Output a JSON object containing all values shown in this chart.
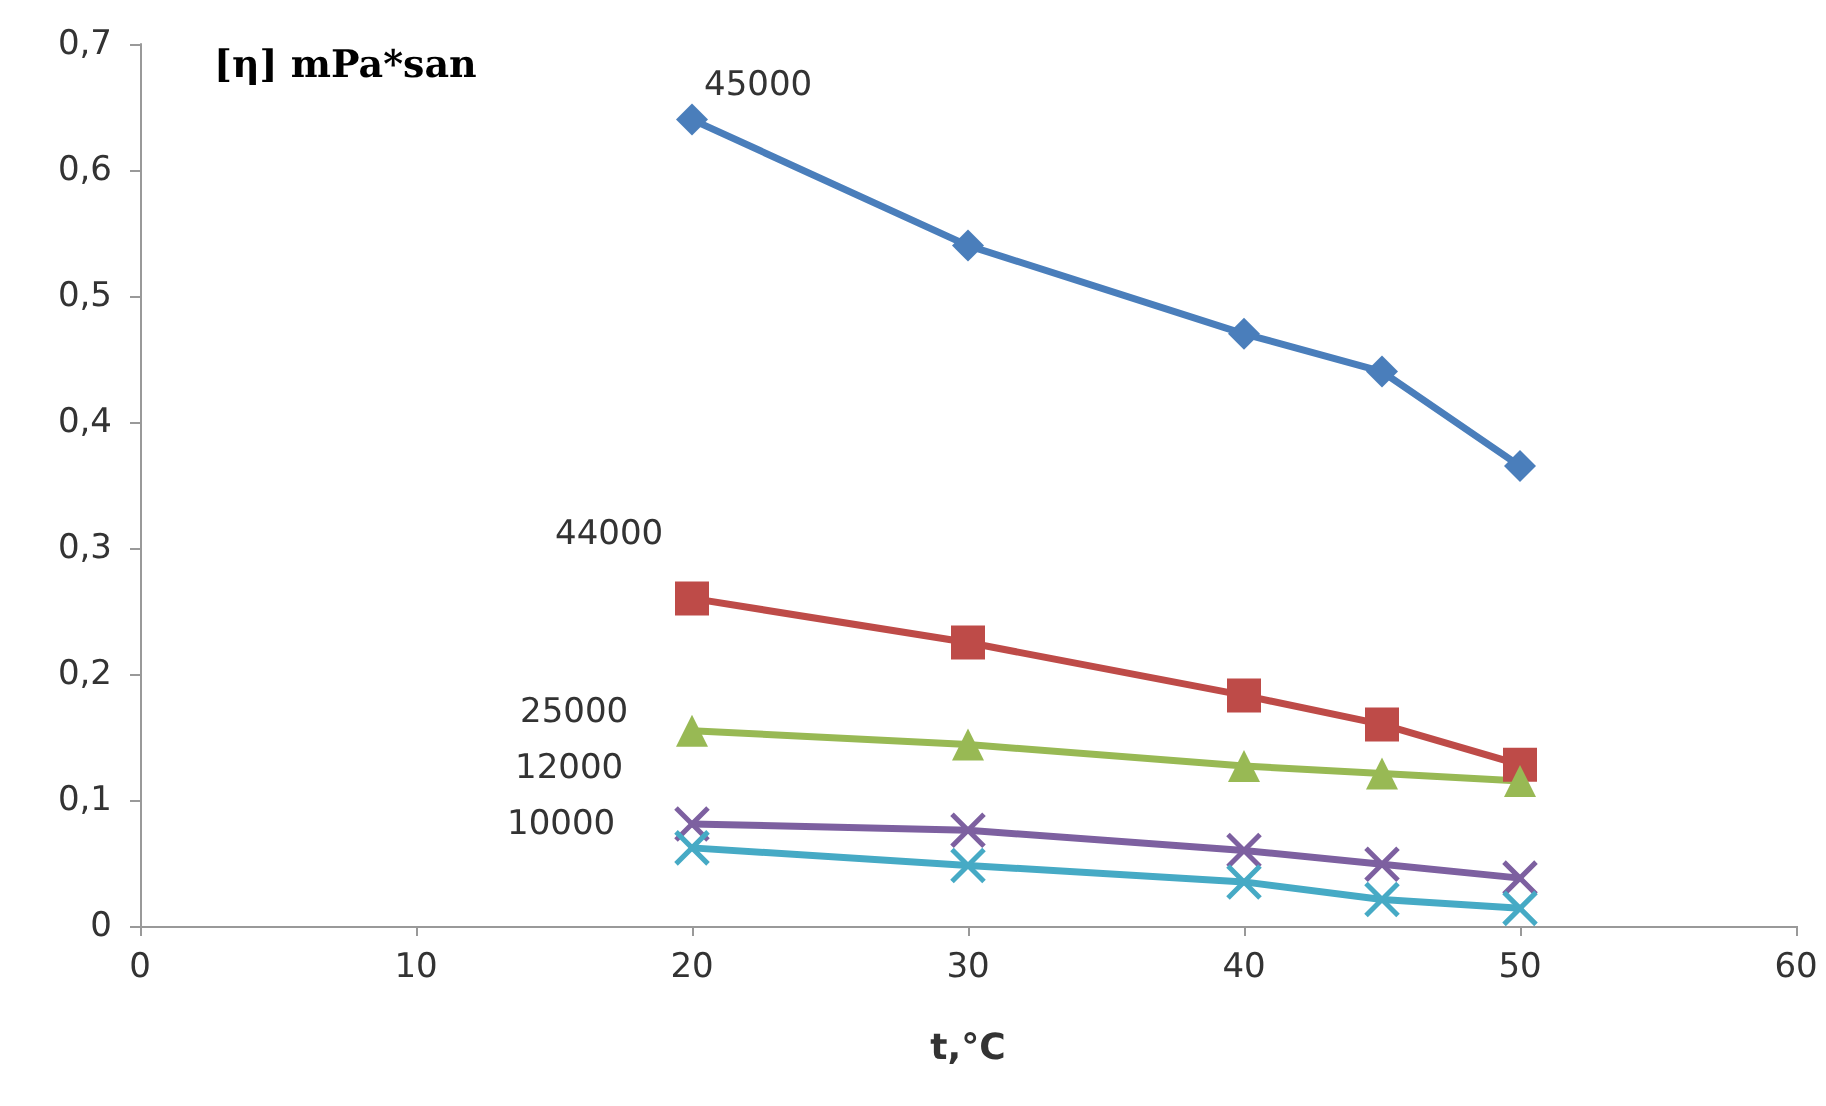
{
  "chart_data": {
    "type": "line",
    "xlabel": "t,°C",
    "ylabel": "[η] mPa*san",
    "grid": false,
    "legend": false,
    "line_style": "solid",
    "xlim": [
      0,
      60
    ],
    "xticks": [
      0,
      10,
      20,
      30,
      40,
      50,
      60
    ],
    "ylim": [
      0,
      0.7
    ],
    "yticks": [
      0,
      {
        "value": 0.1,
        "label": "0,1"
      },
      {
        "value": 0.2,
        "label": "0,2"
      },
      {
        "value": 0.3,
        "label": "0,3"
      },
      {
        "value": 0.4,
        "label": "0,4"
      },
      {
        "value": 0.5,
        "label": "0,5"
      },
      {
        "value": 0.6,
        "label": "0,6"
      },
      {
        "value": 0.7,
        "label": "0,7"
      }
    ],
    "x": [
      20,
      30,
      40,
      45,
      50
    ],
    "series": [
      {
        "name": "45000",
        "color": "#4a7ebb",
        "marker": "diamond",
        "values": [
          0.64,
          0.54,
          0.47,
          0.44,
          0.365
        ]
      },
      {
        "name": "44000",
        "color": "#be4b48",
        "marker": "square",
        "values": [
          0.26,
          0.225,
          0.183,
          0.16,
          0.128
        ]
      },
      {
        "name": "25000",
        "color": "#98b954",
        "marker": "triangle",
        "values": [
          0.155,
          0.144,
          0.127,
          0.121,
          0.115
        ]
      },
      {
        "name": "12000",
        "color": "#7d60a0",
        "marker": "cross",
        "values": [
          0.081,
          0.076,
          0.06,
          0.049,
          0.038
        ]
      },
      {
        "name": "10000",
        "color": "#46aac5",
        "marker": "cross",
        "values": [
          0.062,
          0.048,
          0.035,
          0.021,
          0.014
        ]
      }
    ]
  }
}
